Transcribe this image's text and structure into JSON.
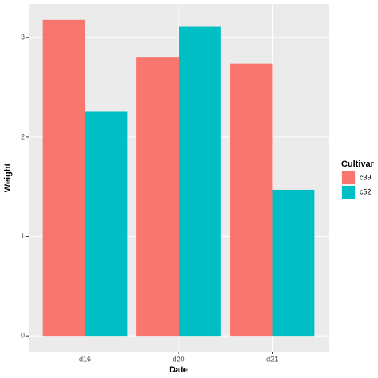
{
  "chart_data": {
    "type": "bar",
    "x_label": "Date",
    "y_label": "Weight",
    "categories": [
      "d16",
      "d20",
      "d21"
    ],
    "series": [
      {
        "name": "c39",
        "color": "#F8766D",
        "values": [
          3.18,
          2.8,
          2.74
        ]
      },
      {
        "name": "c52",
        "color": "#00BFC4",
        "values": [
          2.26,
          3.11,
          1.47
        ]
      }
    ],
    "legend_title": "Cultivar",
    "ylim": [
      -0.159,
      3.339
    ],
    "yticks": [
      0,
      1,
      2,
      3
    ],
    "grid": true
  }
}
